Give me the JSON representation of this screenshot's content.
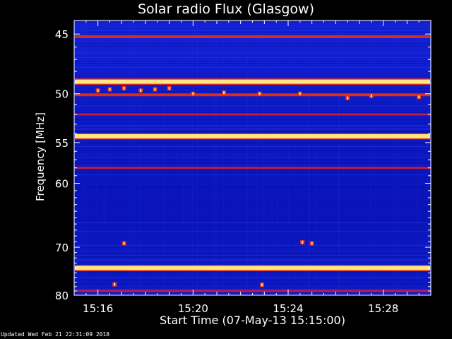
{
  "chart_data": {
    "type": "heatmap",
    "title": "Solar radio Flux (Glasgow)",
    "xlabel": "Start Time (07-May-13 15:15:00)",
    "ylabel": "Frequency [MHz]",
    "x_ticks": [
      "15:16",
      "15:20",
      "15:24",
      "15:28"
    ],
    "x_tick_minutes": [
      1,
      5,
      9,
      13
    ],
    "xlim_minutes": [
      0,
      15
    ],
    "y_ticks": [
      45,
      50,
      55,
      60,
      70,
      80
    ],
    "ylim": [
      44,
      80
    ],
    "y_scale": "reciprocal",
    "bands": [
      {
        "freq": 45.2,
        "level": "medium"
      },
      {
        "freq": 48.9,
        "level": "high"
      },
      {
        "freq": 50.1,
        "level": "medium"
      },
      {
        "freq": 52.0,
        "level": "low"
      },
      {
        "freq": 54.3,
        "level": "high"
      },
      {
        "freq": 58.0,
        "level": "low"
      },
      {
        "freq": 74.0,
        "level": "high"
      },
      {
        "freq": 79.0,
        "level": "low"
      }
    ],
    "bursts": [
      {
        "minute": 1.0,
        "freq": 49.7
      },
      {
        "minute": 1.5,
        "freq": 49.6
      },
      {
        "minute": 2.1,
        "freq": 49.5
      },
      {
        "minute": 2.8,
        "freq": 49.7
      },
      {
        "minute": 3.4,
        "freq": 49.6
      },
      {
        "minute": 4.0,
        "freq": 49.5
      },
      {
        "minute": 5.0,
        "freq": 50.0
      },
      {
        "minute": 6.3,
        "freq": 49.9
      },
      {
        "minute": 7.8,
        "freq": 50.0
      },
      {
        "minute": 9.5,
        "freq": 50.0
      },
      {
        "minute": 11.5,
        "freq": 50.4
      },
      {
        "minute": 12.5,
        "freq": 50.2
      },
      {
        "minute": 14.5,
        "freq": 50.3
      },
      {
        "minute": 2.1,
        "freq": 69.3
      },
      {
        "minute": 9.6,
        "freq": 69.1
      },
      {
        "minute": 10.0,
        "freq": 69.3
      },
      {
        "minute": 1.7,
        "freq": 77.5
      },
      {
        "minute": 7.9,
        "freq": 77.6
      }
    ],
    "colors": {
      "background": "#0b16c8",
      "low": "#c01a40",
      "medium": "#d83010",
      "high": "#ffe680",
      "axis": "#ffffff"
    }
  },
  "footer_text": "Updated Wed Feb 21 22:31:09 2018"
}
